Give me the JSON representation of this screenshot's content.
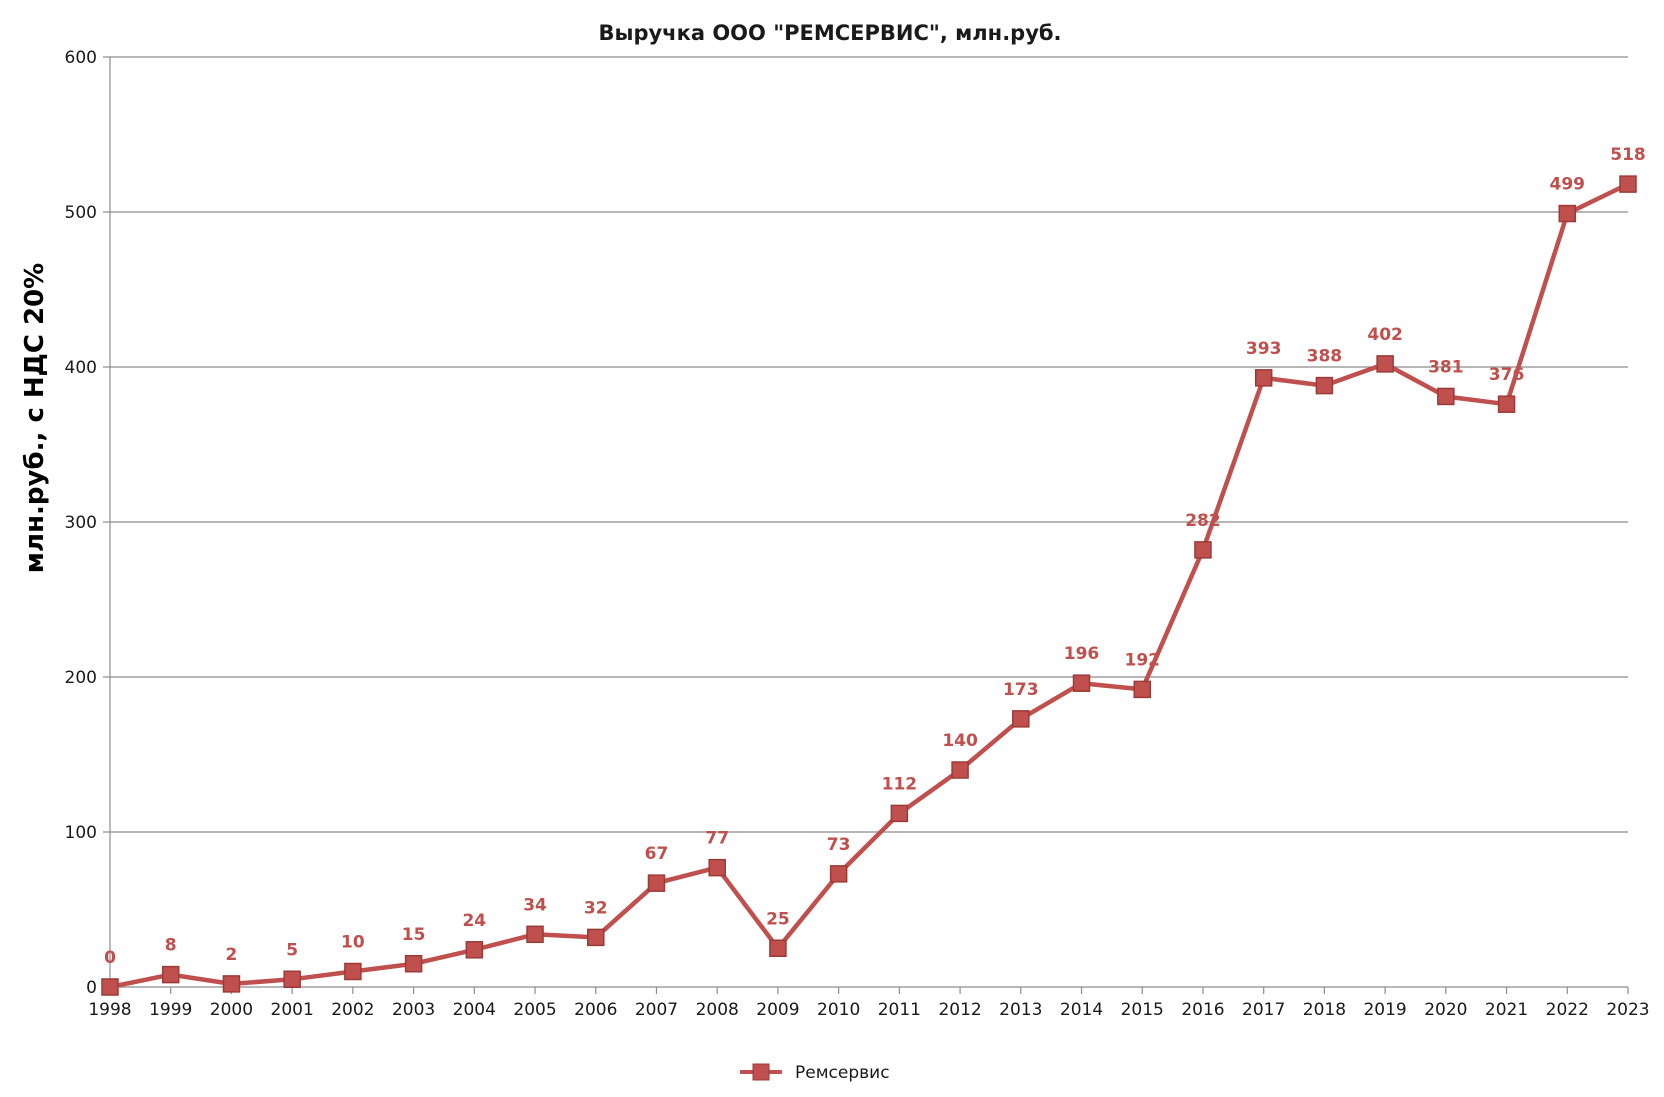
{
  "chart_data": {
    "type": "line",
    "title": "Выручка ООО \"РЕМСЕРВИС\", млн.руб.",
    "xlabel": "",
    "ylabel": "млн.руб., с НДС 20%",
    "ylim": [
      0,
      600
    ],
    "yticks": [
      0,
      100,
      200,
      300,
      400,
      500,
      600
    ],
    "grid": true,
    "legend_position": "bottom",
    "categories": [
      "1998",
      "1999",
      "2000",
      "2001",
      "2002",
      "2003",
      "2004",
      "2005",
      "2006",
      "2007",
      "2008",
      "2009",
      "2010",
      "2011",
      "2012",
      "2013",
      "2014",
      "2015",
      "2016",
      "2017",
      "2018",
      "2019",
      "2020",
      "2021",
      "2022",
      "2023"
    ],
    "series": [
      {
        "name": "Ремсервис",
        "color": "#c0504d",
        "marker": "square",
        "values": [
          0,
          8,
          2,
          5,
          10,
          15,
          24,
          34,
          32,
          67,
          77,
          25,
          73,
          112,
          140,
          173,
          196,
          192,
          282,
          393,
          388,
          402,
          381,
          376,
          499,
          518
        ],
        "data_labels": [
          "0",
          "8",
          "2",
          "5",
          "10",
          "15",
          "24",
          "34",
          "32",
          "67",
          "77",
          "25",
          "73",
          "112",
          "140",
          "173",
          "196",
          "192",
          "282",
          "393",
          "388",
          "402",
          "381",
          "376",
          "499",
          "518"
        ]
      }
    ]
  }
}
